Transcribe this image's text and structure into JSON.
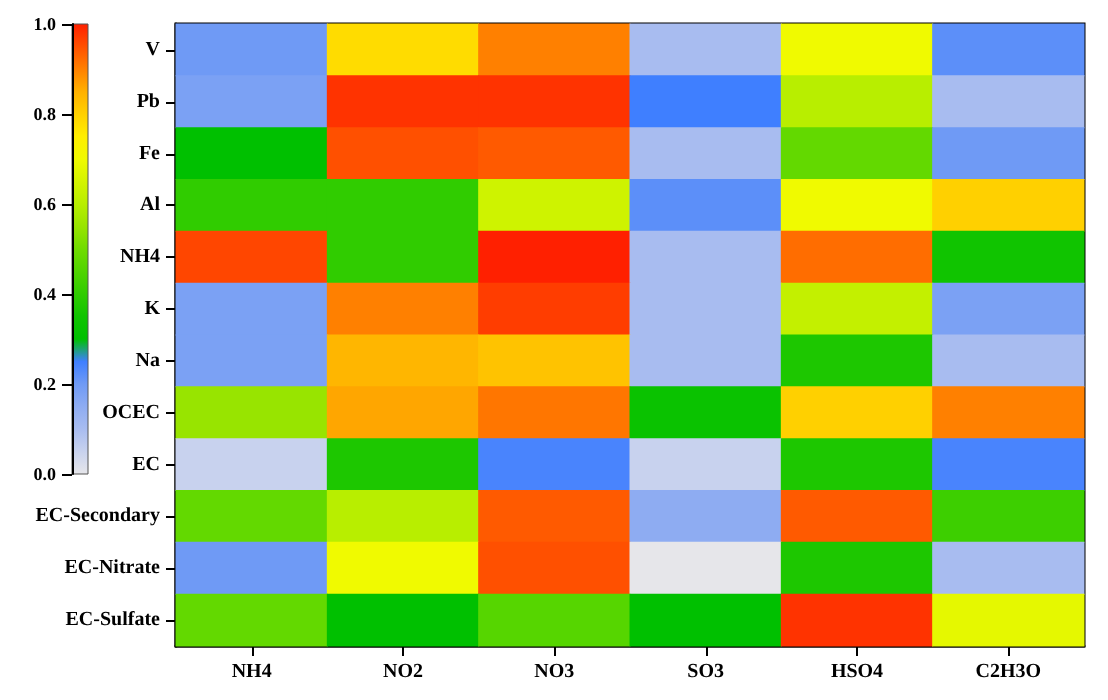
{
  "chart_data": {
    "type": "heatmap",
    "categories": [
      "NH4",
      "NO2",
      "NO3",
      "SO3",
      "HSO4",
      "C2H3O"
    ],
    "y_categories": [
      "V",
      "Pb",
      "Fe",
      "Al",
      "NH4",
      "K",
      "Na",
      "OCEC",
      "EC",
      "EC-Secondary",
      "EC-Nitrate",
      "EC-Sulfate"
    ],
    "cells": [
      [
        0.2,
        0.78,
        0.9,
        0.1,
        0.7,
        0.22
      ],
      [
        0.18,
        0.98,
        0.98,
        0.25,
        0.6,
        0.1
      ],
      [
        0.3,
        0.95,
        0.94,
        0.1,
        0.48,
        0.2
      ],
      [
        0.4,
        0.4,
        0.64,
        0.22,
        0.7,
        0.8
      ],
      [
        0.96,
        0.4,
        1.0,
        0.1,
        0.92,
        0.35
      ],
      [
        0.18,
        0.9,
        0.97,
        0.1,
        0.62,
        0.18
      ],
      [
        0.18,
        0.84,
        0.82,
        0.1,
        0.37,
        0.1
      ],
      [
        0.55,
        0.86,
        0.91,
        0.33,
        0.8,
        0.9
      ],
      [
        0.05,
        0.37,
        0.24,
        0.05,
        0.37,
        0.24
      ],
      [
        0.48,
        0.6,
        0.94,
        0.15,
        0.94,
        0.42
      ],
      [
        0.2,
        0.7,
        0.95,
        0.0,
        0.37,
        0.1
      ],
      [
        0.48,
        0.3,
        0.46,
        0.3,
        0.98,
        0.68
      ]
    ],
    "clim": [
      0,
      1
    ],
    "cticks": [
      {
        "value": 0,
        "label": "0.0"
      },
      {
        "value": 0.2,
        "label": "0.2"
      },
      {
        "value": 0.4,
        "label": "0.4"
      },
      {
        "value": 0.6,
        "label": "0.6"
      },
      {
        "value": 0.8,
        "label": "0.8"
      },
      {
        "value": 1,
        "label": "1.0"
      }
    ]
  }
}
